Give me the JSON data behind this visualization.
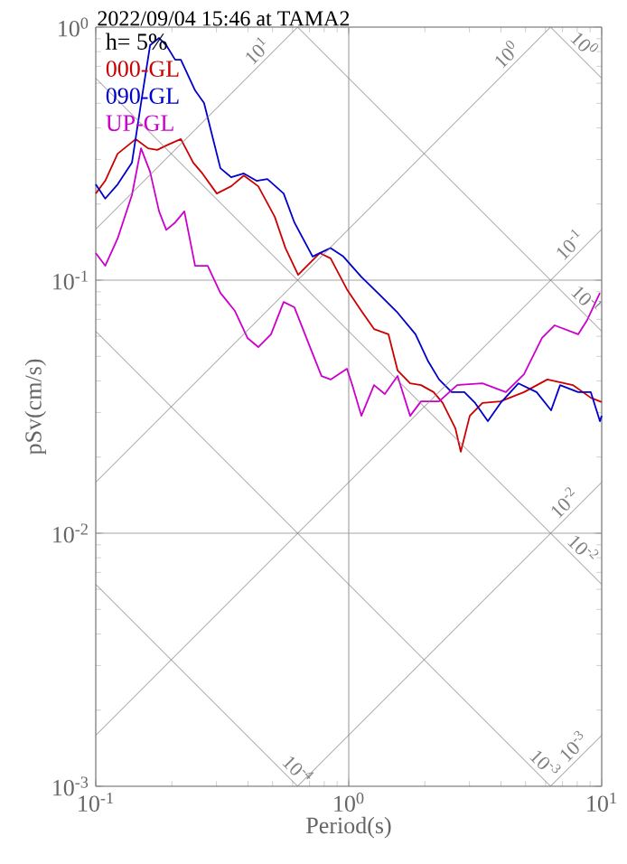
{
  "chart_data": {
    "type": "line",
    "title": "2022/09/04 15:46 at TAMA2",
    "xlabel": "Period(s)",
    "ylabel": "pSv(cm/s)",
    "legend_title": "h= 5%",
    "log": "xy",
    "grid": true,
    "legend": "top left",
    "marker": "none",
    "line_style": "solid",
    "xlim": [
      0.1,
      10
    ],
    "ylim": [
      0.001,
      1
    ],
    "xticks": [
      {
        "value": 0.1,
        "label": "10$^{-1}$"
      },
      {
        "value": 1,
        "label": "10$^{0}$"
      },
      {
        "value": 10,
        "label": "10$^{1}$"
      }
    ],
    "yticks": [
      {
        "value": 0.001,
        "label": "10$^{-3}$"
      },
      {
        "value": 0.01,
        "label": "10$^{-2}$"
      },
      {
        "value": 0.1,
        "label": "10$^{-1}$"
      },
      {
        "value": 1,
        "label": "10$^{0}$"
      }
    ],
    "series": [
      {
        "name": "000-GL",
        "color": "#cc0000",
        "x": [
          0.1,
          0.109,
          0.122,
          0.144,
          0.161,
          0.175,
          0.193,
          0.217,
          0.243,
          0.264,
          0.301,
          0.343,
          0.385,
          0.439,
          0.51,
          0.562,
          0.631,
          0.769,
          0.848,
          0.984,
          1.122,
          1.259,
          1.436,
          1.56,
          1.749,
          1.931,
          2.166,
          2.352,
          2.639,
          2.773,
          3.01,
          3.378,
          3.981,
          4.93,
          6.1,
          7.69,
          9.06,
          10
        ],
        "values": [
          0.22,
          0.247,
          0.316,
          0.361,
          0.332,
          0.327,
          0.343,
          0.361,
          0.291,
          0.264,
          0.22,
          0.235,
          0.259,
          0.235,
          0.178,
          0.134,
          0.105,
          0.128,
          0.122,
          0.092,
          0.0756,
          0.0641,
          0.0611,
          0.044,
          0.0391,
          0.0385,
          0.0361,
          0.0327,
          0.026,
          0.021,
          0.0291,
          0.0327,
          0.0332,
          0.0361,
          0.0405,
          0.0385,
          0.0343,
          0.033
        ]
      },
      {
        "name": "090-GL",
        "color": "#0000cc",
        "x": [
          0.1,
          0.109,
          0.122,
          0.139,
          0.151,
          0.164,
          0.178,
          0.19,
          0.206,
          0.217,
          0.247,
          0.268,
          0.291,
          0.311,
          0.343,
          0.385,
          0.432,
          0.477,
          0.553,
          0.61,
          0.72,
          0.848,
          0.952,
          1.122,
          1.322,
          1.56,
          1.837,
          2.063,
          2.276,
          2.553,
          2.865,
          3.162,
          3.548,
          3.981,
          4.69,
          5.53,
          6.31,
          6.85,
          8.07,
          9.06,
          9.84,
          10
        ],
        "values": [
          0.239,
          0.21,
          0.239,
          0.291,
          0.501,
          0.848,
          0.906,
          0.848,
          0.743,
          0.743,
          0.562,
          0.501,
          0.361,
          0.277,
          0.255,
          0.264,
          0.247,
          0.251,
          0.22,
          0.169,
          0.124,
          0.134,
          0.124,
          0.103,
          0.0877,
          0.0744,
          0.0611,
          0.0477,
          0.0405,
          0.0361,
          0.0361,
          0.0327,
          0.0277,
          0.0327,
          0.0391,
          0.0361,
          0.0306,
          0.0385,
          0.0361,
          0.0361,
          0.0277,
          0.0291
        ]
      },
      {
        "name": "UP-GL",
        "color": "#cc00cc",
        "x": [
          0.1,
          0.109,
          0.122,
          0.139,
          0.151,
          0.164,
          0.178,
          0.19,
          0.206,
          0.224,
          0.247,
          0.277,
          0.311,
          0.355,
          0.398,
          0.439,
          0.493,
          0.553,
          0.61,
          0.708,
          0.781,
          0.848,
          0.984,
          1.033,
          1.122,
          1.259,
          1.389,
          1.56,
          1.749,
          1.931,
          2.276,
          2.683,
          3.378,
          4.18,
          4.93,
          5.81,
          6.52,
          8.07,
          8.77,
          9.84
        ],
        "values": [
          0.128,
          0.114,
          0.146,
          0.217,
          0.332,
          0.268,
          0.187,
          0.158,
          0.169,
          0.187,
          0.114,
          0.114,
          0.089,
          0.0756,
          0.0591,
          0.0544,
          0.0611,
          0.082,
          0.0781,
          0.0535,
          0.0418,
          0.0405,
          0.0447,
          0.0385,
          0.0291,
          0.0385,
          0.0355,
          0.0418,
          0.0291,
          0.0332,
          0.0332,
          0.0385,
          0.0391,
          0.0361,
          0.0425,
          0.0591,
          0.0663,
          0.0611,
          0.0697,
          0.089
        ]
      },
      {
        "color": "#808080",
        "x": [
          0.1,
          0.628
        ],
        "values": [
          0.159,
          1
        ]
      },
      {
        "color": "#808080",
        "x": [
          0.1,
          6.28
        ],
        "values": [
          0.0159,
          1
        ]
      },
      {
        "color": "#808080",
        "x": [
          0.1,
          10
        ],
        "values": [
          0.00159,
          0.159
        ]
      },
      {
        "color": "#808080",
        "x": [
          0.628,
          10
        ],
        "values": [
          0.001,
          0.0159
        ]
      },
      {
        "color": "#808080",
        "x": [
          6.28,
          10
        ],
        "values": [
          0.001,
          0.00159
        ]
      },
      {
        "color": "#808080",
        "x": [
          6.28,
          10
        ],
        "values": [
          1,
          0.628
        ]
      },
      {
        "color": "#808080",
        "x": [
          0.628,
          10
        ],
        "values": [
          1,
          0.0628
        ]
      },
      {
        "color": "#808080",
        "x": [
          0.1,
          10
        ],
        "values": [
          0.628,
          0.00628
        ]
      },
      {
        "color": "#808080",
        "x": [
          0.1,
          6.28
        ],
        "values": [
          0.0628,
          0.001
        ]
      },
      {
        "color": "#808080",
        "x": [
          0.1,
          0.628
        ],
        "values": [
          0.00628,
          0.001
        ]
      }
    ],
    "annotations": [
      {
        "text": "10$^{1}$",
        "x": 0.469,
        "y": 0.746
      },
      {
        "text": "10$^{0}$",
        "x": 4.54,
        "y": 0.722
      },
      {
        "text": "10$^{-1}$",
        "x": 8.07,
        "y": 0.128
      },
      {
        "text": "10$^{-2}$",
        "x": 7.69,
        "y": 0.0122
      },
      {
        "text": "10$^{-3}$",
        "x": 8.34,
        "y": 0.00133
      },
      {
        "text": "10$^{0}$",
        "x": 7.9,
        "y": 0.795
      },
      {
        "text": "10$^{-1}$",
        "x": 8.07,
        "y": 0.0778
      },
      {
        "text": "10$^{-2}$",
        "x": 7.81,
        "y": 0.00804
      },
      {
        "text": "10$^{-3}$",
        "x": 5.53,
        "y": 0.00114
      },
      {
        "text": "10$^{-4}$",
        "x": 0.582,
        "y": 0.00108
      }
    ]
  }
}
